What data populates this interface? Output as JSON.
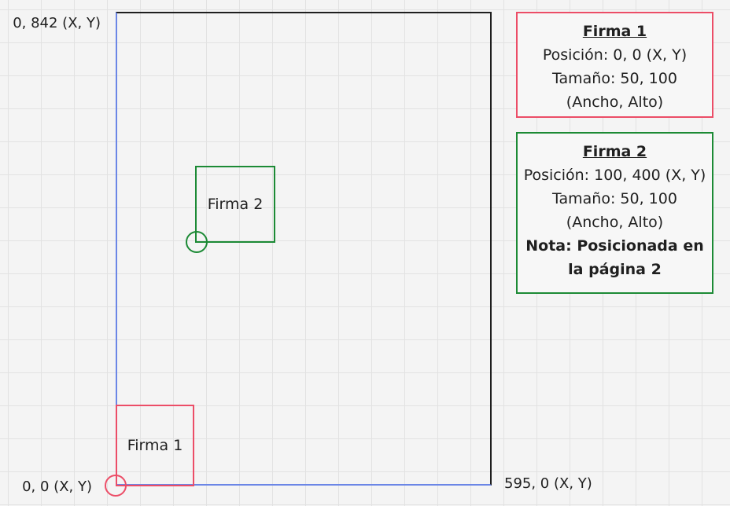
{
  "labels": {
    "top_left": "0, 842 (X, Y)",
    "origin": "0, 0 (X, Y)",
    "bottom_right": "595, 0 (X, Y)"
  },
  "signatures": [
    {
      "label": "Firma 1",
      "color": "#ec4d67"
    },
    {
      "label": "Firma 2",
      "color": "#1c8a35"
    }
  ],
  "info_boxes": [
    {
      "title": "Firma 1",
      "position": "Posición: 0, 0 (X, Y)",
      "size": "Tamaño: 50, 100",
      "size_units": "(Ancho, Alto)"
    },
    {
      "title": "Firma 2",
      "position": "Posición: 100, 400 (X, Y)",
      "size": "Tamaño: 50, 100",
      "size_units": "(Ancho, Alto)",
      "note_line1": "Nota: Posicionada en",
      "note_line2": "la página 2"
    }
  ],
  "colors": {
    "page_border": "#1e1e1e",
    "axis": "#6b86e6",
    "firma1": "#ec4d67",
    "firma2": "#1c8a35"
  }
}
